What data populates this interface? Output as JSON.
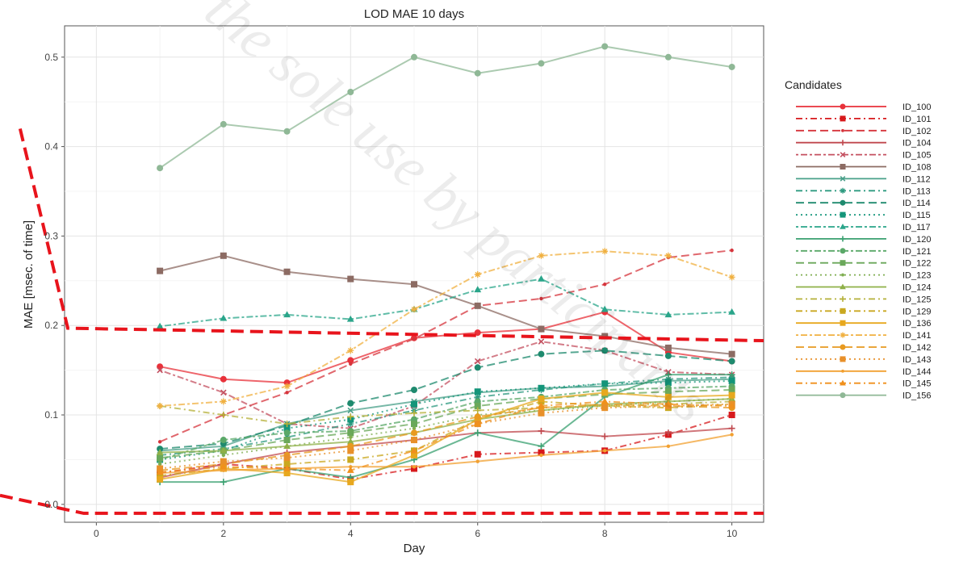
{
  "chart_data": {
    "type": "line",
    "title": "LOD MAE 10 days",
    "xlabel": "Day",
    "ylabel": "MAE [msec. of time]",
    "xlim": [
      -0.5,
      10.5
    ],
    "ylim": [
      -0.02,
      0.535
    ],
    "xticks": [
      0,
      2,
      4,
      6,
      8,
      10
    ],
    "yticks": [
      0.0,
      0.1,
      0.2,
      0.3,
      0.4,
      0.5
    ],
    "ytick_labels": [
      "0.0",
      "0.1",
      "0.2",
      "0.3",
      "0.4",
      "0.5"
    ],
    "grid": true,
    "legend_title": "Candidates",
    "legend_position": "right",
    "x": [
      1,
      2,
      3,
      4,
      5,
      6,
      7,
      8,
      9,
      10
    ],
    "series": [
      {
        "name": "ID_100",
        "color": "#e8313a",
        "dash": "solid",
        "marker": "circle",
        "values": [
          0.154,
          0.14,
          0.136,
          0.161,
          0.186,
          0.192,
          0.196,
          0.215,
          0.17,
          0.16
        ]
      },
      {
        "name": "ID_101",
        "color": "#d7191c",
        "dash": "dashdot",
        "marker": "square",
        "values": [
          0.035,
          0.045,
          0.04,
          0.028,
          0.04,
          0.056,
          0.058,
          0.06,
          0.078,
          0.1
        ]
      },
      {
        "name": "ID_102",
        "color": "#d6343c",
        "dash": "longdash",
        "marker": "dot",
        "values": [
          0.07,
          0.1,
          0.125,
          0.157,
          0.185,
          0.222,
          0.23,
          0.246,
          0.276,
          0.284
        ]
      },
      {
        "name": "ID_104",
        "color": "#c0484e",
        "dash": "solid",
        "marker": "plus",
        "values": [
          0.03,
          0.045,
          0.058,
          0.065,
          0.072,
          0.08,
          0.082,
          0.076,
          0.08,
          0.085
        ]
      },
      {
        "name": "ID_105",
        "color": "#c45060",
        "dash": "dotdash",
        "marker": "x",
        "values": [
          0.15,
          0.125,
          0.09,
          0.085,
          0.11,
          0.16,
          0.182,
          0.172,
          0.148,
          0.145
        ]
      },
      {
        "name": "ID_108",
        "color": "#8c6b63",
        "dash": "solid",
        "marker": "square",
        "values": [
          0.261,
          0.278,
          0.26,
          0.252,
          0.246,
          0.222,
          0.196,
          0.188,
          0.175,
          0.168
        ]
      },
      {
        "name": "ID_112",
        "color": "#4aa08a",
        "dash": "solid",
        "marker": "x",
        "values": [
          0.06,
          0.065,
          0.09,
          0.105,
          0.115,
          0.125,
          0.13,
          0.132,
          0.138,
          0.14
        ]
      },
      {
        "name": "ID_113",
        "color": "#2e9a80",
        "dash": "dashdot",
        "marker": "star",
        "values": [
          0.055,
          0.062,
          0.075,
          0.09,
          0.105,
          0.12,
          0.128,
          0.135,
          0.14,
          0.142
        ]
      },
      {
        "name": "ID_114",
        "color": "#1e8a6e",
        "dash": "longdash",
        "marker": "circle",
        "values": [
          0.062,
          0.068,
          0.088,
          0.113,
          0.128,
          0.153,
          0.168,
          0.172,
          0.166,
          0.16
        ]
      },
      {
        "name": "ID_115",
        "color": "#14957a",
        "dash": "dotted",
        "marker": "square",
        "values": [
          0.05,
          0.06,
          0.085,
          0.095,
          0.112,
          0.126,
          0.13,
          0.135,
          0.136,
          0.138
        ]
      },
      {
        "name": "ID_117",
        "color": "#2aa58a",
        "dash": "dotdash",
        "marker": "triangle",
        "values": [
          0.199,
          0.208,
          0.212,
          0.207,
          0.218,
          0.24,
          0.252,
          0.218,
          0.212,
          0.215
        ]
      },
      {
        "name": "ID_120",
        "color": "#3aa070",
        "dash": "solid",
        "marker": "plus",
        "values": [
          0.025,
          0.025,
          0.04,
          0.03,
          0.05,
          0.08,
          0.065,
          0.12,
          0.145,
          0.145
        ]
      },
      {
        "name": "ID_121",
        "color": "#5aa868",
        "dash": "dotdash",
        "marker": "circle",
        "values": [
          0.05,
          0.072,
          0.08,
          0.082,
          0.095,
          0.115,
          0.12,
          0.128,
          0.13,
          0.132
        ]
      },
      {
        "name": "ID_122",
        "color": "#6aa85a",
        "dash": "longdash",
        "marker": "square",
        "values": [
          0.052,
          0.06,
          0.072,
          0.08,
          0.09,
          0.11,
          0.118,
          0.123,
          0.126,
          0.128
        ]
      },
      {
        "name": "ID_123",
        "color": "#7fae50",
        "dash": "dotted",
        "marker": "dot",
        "values": [
          0.045,
          0.055,
          0.065,
          0.075,
          0.085,
          0.1,
          0.105,
          0.11,
          0.115,
          0.118
        ]
      },
      {
        "name": "ID_124",
        "color": "#8fb048",
        "dash": "solid",
        "marker": "triangle",
        "values": [
          0.058,
          0.06,
          0.065,
          0.07,
          0.08,
          0.095,
          0.105,
          0.112,
          0.115,
          0.118
        ]
      },
      {
        "name": "ID_125",
        "color": "#b5b03a",
        "dash": "dashdot",
        "marker": "plus",
        "values": [
          0.11,
          0.1,
          0.09,
          0.098,
          0.102,
          0.105,
          0.108,
          0.11,
          0.112,
          0.115
        ]
      },
      {
        "name": "ID_129",
        "color": "#c9a820",
        "dash": "dashdot",
        "marker": "square",
        "values": [
          0.032,
          0.04,
          0.045,
          0.05,
          0.06,
          0.095,
          0.115,
          0.11,
          0.108,
          0.112
        ]
      },
      {
        "name": "ID_136",
        "color": "#e7a81e",
        "dash": "solid",
        "marker": "square",
        "values": [
          0.028,
          0.04,
          0.035,
          0.025,
          0.055,
          0.095,
          0.118,
          0.125,
          0.12,
          0.122
        ]
      },
      {
        "name": "ID_141",
        "color": "#f0b040",
        "dash": "dotdash",
        "marker": "star",
        "values": [
          0.11,
          0.115,
          0.132,
          0.172,
          0.218,
          0.257,
          0.278,
          0.283,
          0.278,
          0.254
        ]
      },
      {
        "name": "ID_142",
        "color": "#e89a20",
        "dash": "longdash",
        "marker": "circle",
        "values": [
          0.038,
          0.045,
          0.055,
          0.065,
          0.08,
          0.098,
          0.108,
          0.112,
          0.11,
          0.108
        ]
      },
      {
        "name": "ID_143",
        "color": "#e8902a",
        "dash": "dotted",
        "marker": "square",
        "values": [
          0.04,
          0.048,
          0.052,
          0.06,
          0.072,
          0.09,
          0.102,
          0.108,
          0.11,
          0.112
        ]
      },
      {
        "name": "ID_144",
        "color": "#f2a030",
        "dash": "solid",
        "marker": "dot",
        "values": [
          0.035,
          0.038,
          0.04,
          0.042,
          0.042,
          0.048,
          0.055,
          0.06,
          0.065,
          0.078
        ]
      },
      {
        "name": "ID_145",
        "color": "#f0901c",
        "dash": "dashdot",
        "marker": "triangle",
        "values": [
          0.036,
          0.042,
          0.04,
          0.038,
          0.06,
          0.09,
          0.11,
          0.115,
          0.112,
          0.11
        ]
      },
      {
        "name": "ID_156",
        "color": "#8fb896",
        "dash": "solid",
        "marker": "circle",
        "values": [
          0.376,
          0.425,
          0.417,
          0.461,
          0.5,
          0.482,
          0.493,
          0.512,
          0.5,
          0.489
        ]
      }
    ],
    "watermark": "the sole use by participants",
    "annotations": [
      {
        "type": "dashed-line",
        "color": "#e8141c",
        "points": [
          [
            -1.2,
            0.42
          ],
          [
            -0.45,
            0.197
          ],
          [
            10.5,
            0.183
          ]
        ]
      },
      {
        "type": "dashed-line",
        "color": "#e8141c",
        "points": [
          [
            -1.6,
            0.01
          ],
          [
            -0.2,
            -0.01
          ],
          [
            10.5,
            -0.01
          ]
        ]
      }
    ]
  }
}
